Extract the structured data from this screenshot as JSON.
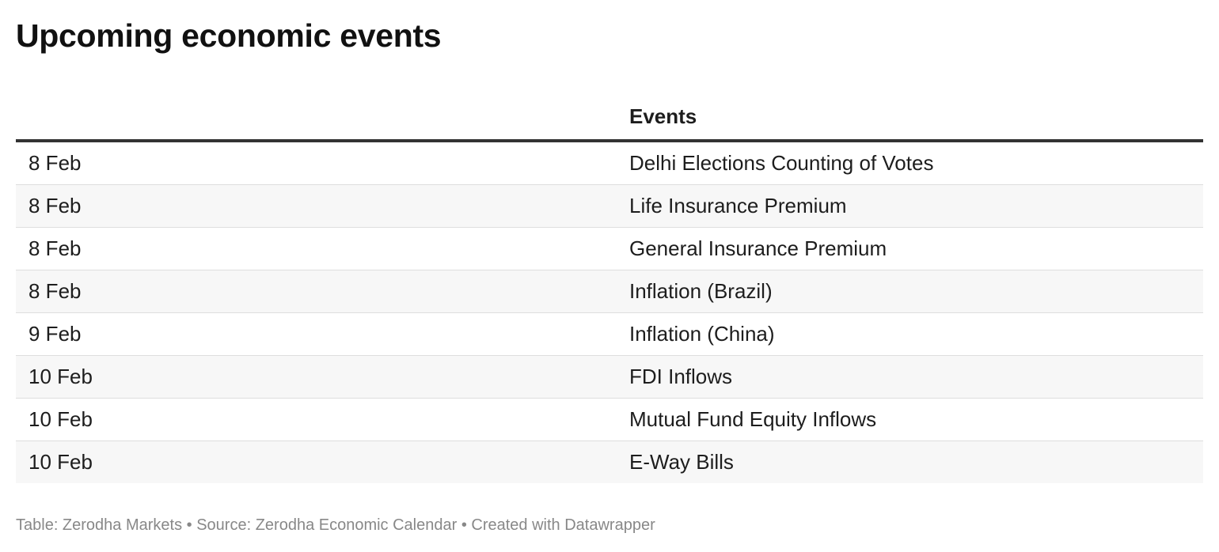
{
  "title": "Upcoming economic events",
  "columns": [
    "",
    "Events"
  ],
  "rows": [
    {
      "date": "8 Feb",
      "event": "Delhi Elections Counting of Votes"
    },
    {
      "date": "8 Feb",
      "event": "Life Insurance Premium"
    },
    {
      "date": "8 Feb",
      "event": "General Insurance Premium"
    },
    {
      "date": "8 Feb",
      "event": "Inflation (Brazil)"
    },
    {
      "date": "9 Feb",
      "event": "Inflation (China)"
    },
    {
      "date": "10 Feb",
      "event": "FDI Inflows"
    },
    {
      "date": "10 Feb",
      "event": "Mutual Fund Equity Inflows"
    },
    {
      "date": "10 Feb",
      "event": "E-Way Bills"
    }
  ],
  "footer": {
    "text": "Table: Zerodha Markets • Source: Zerodha Economic Calendar • Created with Datawrapper"
  },
  "chart_data": {
    "type": "table",
    "title": "Upcoming economic events",
    "columns": [
      "",
      "Events"
    ],
    "rows": [
      [
        "8 Feb",
        "Delhi Elections Counting of Votes"
      ],
      [
        "8 Feb",
        "Life Insurance Premium"
      ],
      [
        "8 Feb",
        "General Insurance Premium"
      ],
      [
        "8 Feb",
        "Inflation (Brazil)"
      ],
      [
        "9 Feb",
        "Inflation (China)"
      ],
      [
        "10 Feb",
        "FDI Inflows"
      ],
      [
        "10 Feb",
        "Mutual Fund Equity Inflows"
      ],
      [
        "10 Feb",
        "E-Way Bills"
      ]
    ]
  }
}
